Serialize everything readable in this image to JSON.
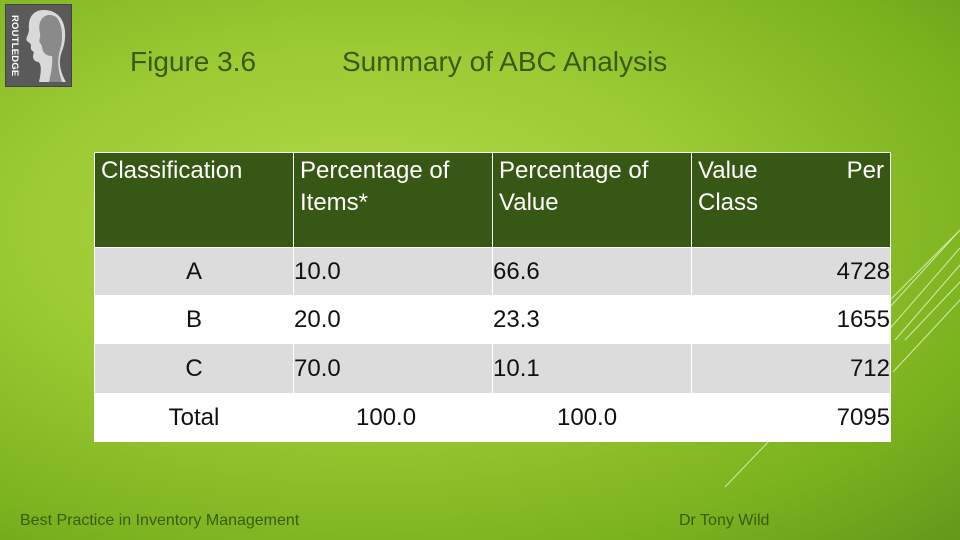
{
  "logo": {
    "text": "ROUTLEDGE"
  },
  "header": {
    "figure_number": "Figure 3.6",
    "title": "Summary of ABC Analysis"
  },
  "table": {
    "headers": [
      {
        "line1": "Classification",
        "line2": ""
      },
      {
        "line1": "Percentage of",
        "line2": "Items*"
      },
      {
        "line1": "Percentage of",
        "line2": "Value"
      },
      {
        "line1": "Value Per",
        "line2": "Class"
      }
    ],
    "rows": [
      {
        "classification": "A",
        "pct_items": "10.0",
        "pct_value": "66.6",
        "value_per_class": "4728"
      },
      {
        "classification": "B",
        "pct_items": "20.0",
        "pct_value": "23.3",
        "value_per_class": "1655"
      },
      {
        "classification": "C",
        "pct_items": "70.0",
        "pct_value": "10.1",
        "value_per_class": "712"
      },
      {
        "classification": "Total",
        "pct_items": "100.0",
        "pct_value": "100.0",
        "value_per_class": "7095"
      }
    ]
  },
  "footer": {
    "left": "Best Practice in Inventory Management",
    "right": "Dr Tony Wild"
  },
  "colors": {
    "header_bg": "#375714",
    "title_text": "#3d5a14",
    "row_alt": "#dcdcdc"
  }
}
